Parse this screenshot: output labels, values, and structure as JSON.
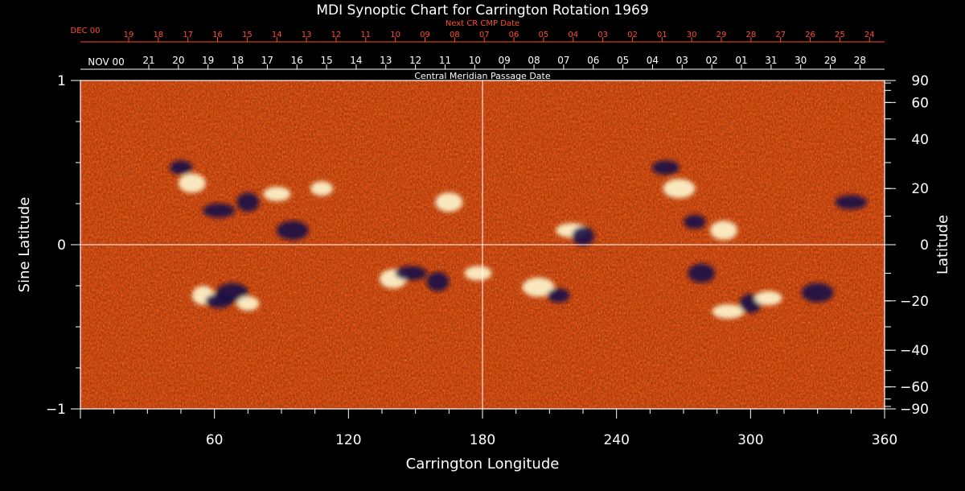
{
  "chart_data": {
    "type": "heatmap",
    "title": "MDI Synoptic Chart for Carrington Rotation 1969",
    "xlabel": "Carrington Longitude",
    "ylabel": "Sine Latitude",
    "ylabel_right": "Latitude",
    "xlim": [
      0,
      360
    ],
    "ylim": [
      -1,
      1
    ],
    "x_ticks": [
      60,
      120,
      180,
      240,
      300,
      360
    ],
    "y_ticks": [
      {
        "value": 1,
        "label": "1"
      },
      {
        "value": 0,
        "label": "0"
      },
      {
        "value": -1,
        "label": "−1"
      }
    ],
    "right_lat_ticks": [
      {
        "lat": 90,
        "label": "90"
      },
      {
        "lat": 60,
        "label": "60"
      },
      {
        "lat": 40,
        "label": "40"
      },
      {
        "lat": 20,
        "label": "20"
      },
      {
        "lat": 0,
        "label": "0"
      },
      {
        "lat": -20,
        "label": "−20"
      },
      {
        "lat": -40,
        "label": "−40"
      },
      {
        "lat": -60,
        "label": "−60"
      },
      {
        "lat": -90,
        "label": "−90"
      }
    ],
    "grid": {
      "x": [
        180
      ],
      "y": [
        0
      ]
    },
    "top_axis_cmp": {
      "label": "Central Meridian Passage Date",
      "start_label": "NOV 00",
      "dates": [
        "21",
        "20",
        "19",
        "18",
        "17",
        "16",
        "15",
        "14",
        "13",
        "12",
        "11",
        "10",
        "09",
        "08",
        "07",
        "06",
        "05",
        "04",
        "03",
        "02",
        "01",
        "31",
        "30",
        "29",
        "28"
      ]
    },
    "top_axis_next_cr": {
      "label": "Next CR CMP Date",
      "start_label": "DEC 00",
      "dates": [
        "19",
        "18",
        "17",
        "16",
        "15",
        "14",
        "13",
        "12",
        "11",
        "10",
        "09",
        "08",
        "07",
        "06",
        "05",
        "04",
        "03",
        "02",
        "01",
        "30",
        "29",
        "28",
        "27",
        "26",
        "25",
        "24"
      ]
    },
    "colors": {
      "background": "#000000",
      "axis": "#ffffff",
      "next_cr_axis": "#ff4d2e",
      "field_base": "#e85212",
      "positive_polarity": "#fff8d0",
      "negative_polarity": "#1a1248"
    },
    "magnetic_regions": [
      {
        "lon": 45,
        "lat": 28,
        "polarity": "negative"
      },
      {
        "lon": 50,
        "lat": 22,
        "polarity": "positive"
      },
      {
        "lon": 62,
        "lat": 12,
        "polarity": "negative"
      },
      {
        "lon": 75,
        "lat": 15,
        "polarity": "negative"
      },
      {
        "lon": 88,
        "lat": 18,
        "polarity": "positive"
      },
      {
        "lon": 95,
        "lat": 5,
        "polarity": "negative"
      },
      {
        "lon": 108,
        "lat": 20,
        "polarity": "positive"
      },
      {
        "lon": 165,
        "lat": 15,
        "polarity": "positive"
      },
      {
        "lon": 220,
        "lat": 5,
        "polarity": "positive"
      },
      {
        "lon": 225,
        "lat": 3,
        "polarity": "negative"
      },
      {
        "lon": 262,
        "lat": 28,
        "polarity": "negative"
      },
      {
        "lon": 268,
        "lat": 20,
        "polarity": "positive"
      },
      {
        "lon": 275,
        "lat": 8,
        "polarity": "negative"
      },
      {
        "lon": 288,
        "lat": 5,
        "polarity": "positive"
      },
      {
        "lon": 345,
        "lat": 15,
        "polarity": "negative"
      },
      {
        "lon": 55,
        "lat": -18,
        "polarity": "positive"
      },
      {
        "lon": 62,
        "lat": -20,
        "polarity": "negative"
      },
      {
        "lon": 68,
        "lat": -17,
        "polarity": "negative"
      },
      {
        "lon": 75,
        "lat": -21,
        "polarity": "positive"
      },
      {
        "lon": 140,
        "lat": -12,
        "polarity": "positive"
      },
      {
        "lon": 148,
        "lat": -10,
        "polarity": "negative"
      },
      {
        "lon": 160,
        "lat": -13,
        "polarity": "negative"
      },
      {
        "lon": 178,
        "lat": -10,
        "polarity": "positive"
      },
      {
        "lon": 205,
        "lat": -15,
        "polarity": "positive"
      },
      {
        "lon": 214,
        "lat": -18,
        "polarity": "negative"
      },
      {
        "lon": 278,
        "lat": -10,
        "polarity": "negative"
      },
      {
        "lon": 290,
        "lat": -24,
        "polarity": "positive"
      },
      {
        "lon": 300,
        "lat": -21,
        "polarity": "negative"
      },
      {
        "lon": 308,
        "lat": -19,
        "polarity": "positive"
      },
      {
        "lon": 330,
        "lat": -17,
        "polarity": "negative"
      }
    ]
  }
}
